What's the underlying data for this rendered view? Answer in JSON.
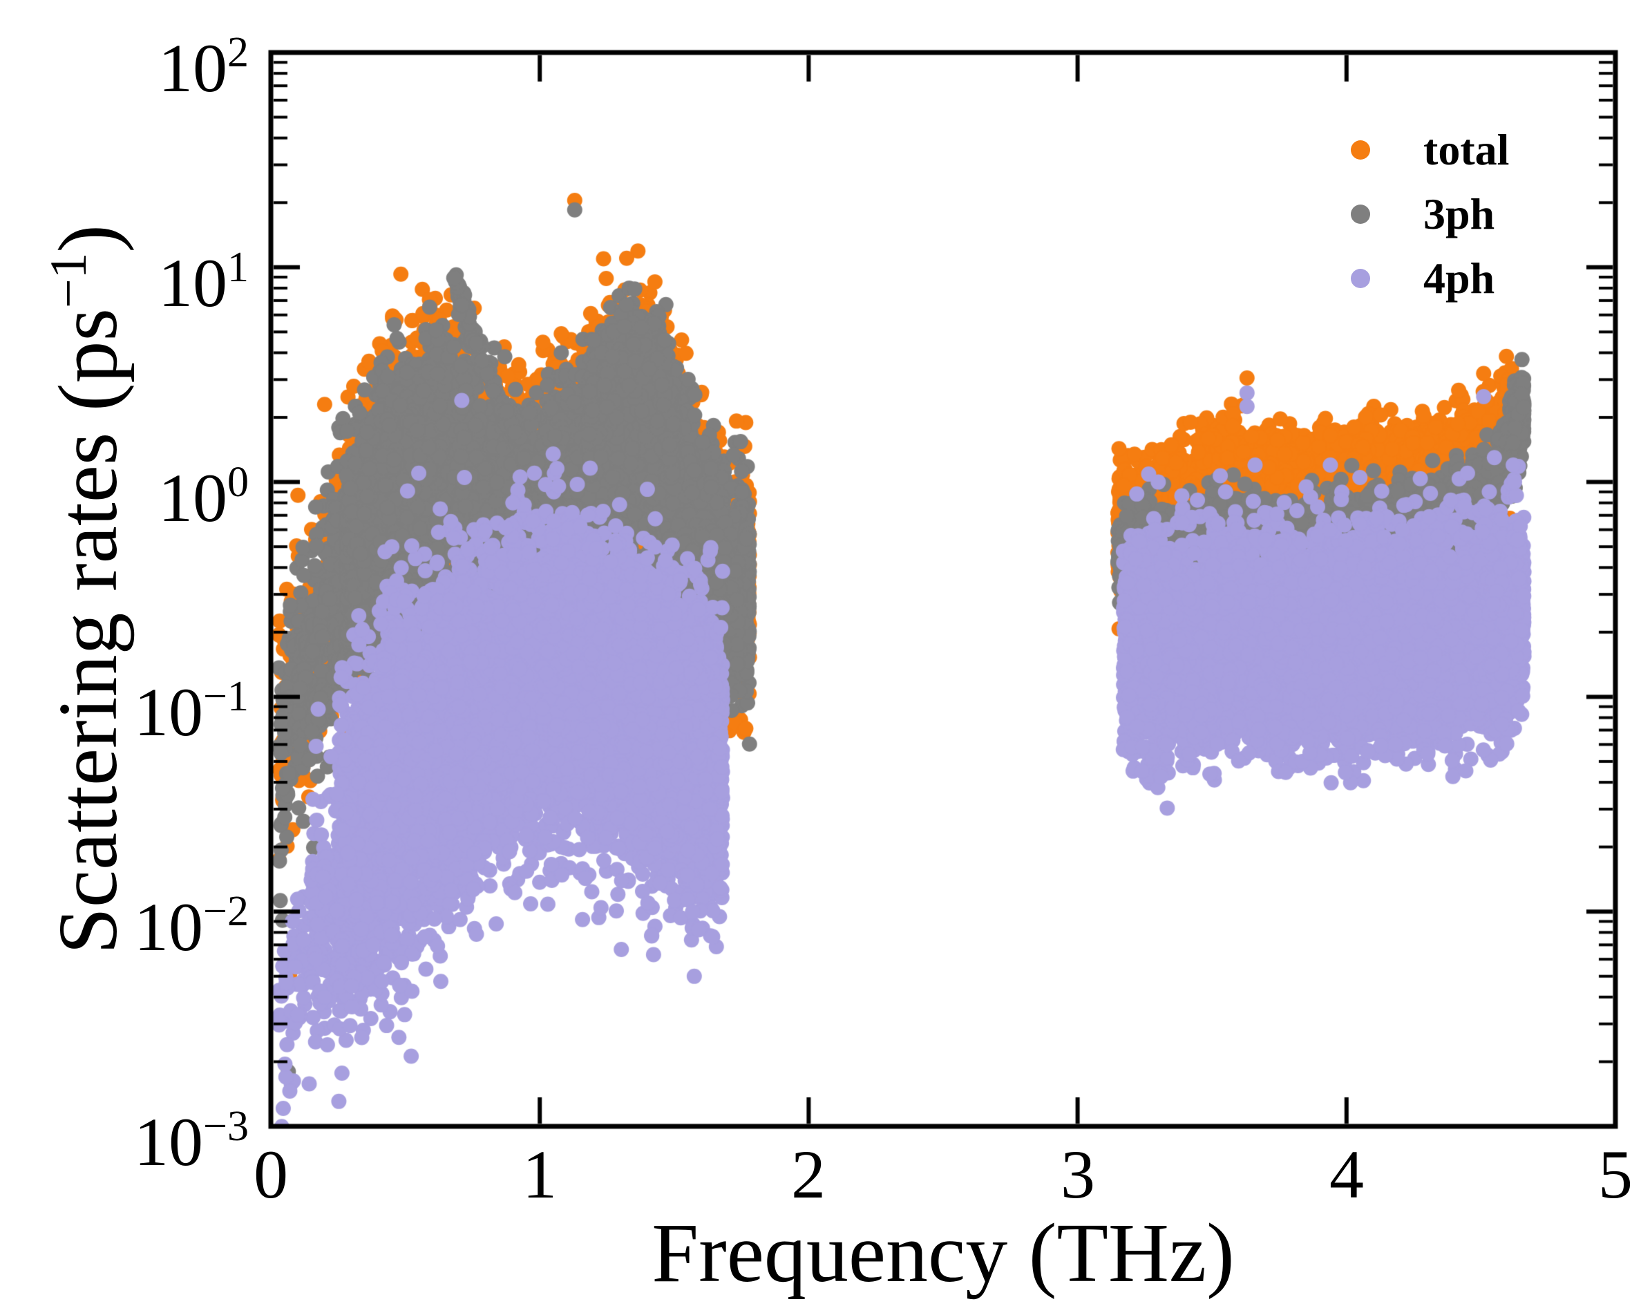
{
  "axes": {
    "xlabel": "Frequency (THz)",
    "ylabel_pre": "Scattering rates (ps",
    "ylabel_sup": "−1",
    "ylabel_post": ")",
    "xticks": [
      "0",
      "1",
      "2",
      "3",
      "4",
      "5"
    ],
    "yticks": [
      {
        "base": "10",
        "exp": "2"
      },
      {
        "base": "10",
        "exp": "1"
      },
      {
        "base": "10",
        "exp": "0"
      },
      {
        "base": "10",
        "exp": "−1"
      },
      {
        "base": "10",
        "exp": "−2"
      },
      {
        "base": "10",
        "exp": "−3"
      }
    ]
  },
  "legend": {
    "items": [
      {
        "label": "total",
        "color": "#f57d11"
      },
      {
        "label": "3ph",
        "color": "#7f7f7f"
      },
      {
        "label": "4ph",
        "color": "#a79fdf"
      }
    ]
  },
  "chart_data": {
    "type": "scatter",
    "title": "",
    "xlabel": "Frequency (THz)",
    "ylabel": "Scattering rates (ps^-1)",
    "x_range": [
      0,
      5
    ],
    "y_log_range": [
      -3,
      2
    ],
    "x_ticks": [
      0,
      1,
      2,
      3,
      4,
      5
    ],
    "y_tick_exponents": [
      2,
      1,
      0,
      -1,
      -2,
      -3
    ],
    "grid": false,
    "legend_position": "upper right inside",
    "marker_px": 11,
    "frequency_bands_thz": [
      [
        0.03,
        1.78
      ],
      [
        3.15,
        4.66
      ]
    ],
    "series": [
      {
        "name": "total",
        "color": "#f57d11",
        "clusters": [
          {
            "n": 420,
            "x": [
              0.03,
              0.48
            ],
            "logy_keys": [
              [
                0.03,
                -1.25
              ],
              [
                0.12,
                -0.85
              ],
              [
                0.22,
                -0.5
              ],
              [
                0.33,
                -0.18
              ],
              [
                0.48,
                0.18
              ]
            ],
            "spread": 0.3
          },
          {
            "n": 7000,
            "x": [
              0.28,
              1.78
            ],
            "logy_keys": [
              [
                0.28,
                -0.32
              ],
              [
                0.5,
                0.05
              ],
              [
                0.62,
                0.26
              ],
              [
                0.8,
                -0.05
              ],
              [
                0.95,
                -0.2
              ],
              [
                1.1,
                0.0
              ],
              [
                1.25,
                0.26
              ],
              [
                1.4,
                0.3
              ],
              [
                1.5,
                0.1
              ],
              [
                1.6,
                -0.25
              ],
              [
                1.7,
                -0.45
              ],
              [
                1.78,
                -0.5
              ]
            ],
            "spread": 0.24
          },
          {
            "n": 500,
            "x": [
              1.18,
              1.5
            ],
            "logy_keys": [
              [
                1.18,
                0.3
              ],
              [
                1.3,
                0.58
              ],
              [
                1.36,
                0.62
              ],
              [
                1.44,
                0.5
              ],
              [
                1.5,
                0.22
              ]
            ],
            "spread": 0.12
          },
          {
            "n": 500,
            "x": [
              0.75,
              1.1
            ],
            "logy_keys": [
              [
                0.75,
                -0.1
              ],
              [
                0.9,
                -0.28
              ],
              [
                1.1,
                -0.15
              ]
            ],
            "spread": 0.3
          },
          {
            "n": 700,
            "x": [
              0.3,
              1.72
            ],
            "logy_keys": [
              [
                0.3,
                -0.5
              ],
              [
                0.8,
                -0.5
              ],
              [
                1.2,
                -0.45
              ],
              [
                1.72,
                -0.55
              ]
            ],
            "spread": 0.15
          },
          {
            "n": 4500,
            "x": [
              3.15,
              4.62
            ],
            "logy_keys": [
              [
                3.15,
                -0.2
              ],
              [
                3.3,
                -0.24
              ],
              [
                3.45,
                -0.12
              ],
              [
                3.55,
                -0.02
              ],
              [
                3.7,
                -0.14
              ],
              [
                3.85,
                -0.12
              ],
              [
                4.0,
                -0.07
              ],
              [
                4.15,
                -0.04
              ],
              [
                4.3,
                -0.02
              ],
              [
                4.45,
                0.03
              ],
              [
                4.55,
                0.08
              ],
              [
                4.62,
                0.26
              ]
            ],
            "spread": 0.13
          },
          {
            "n": 450,
            "x": [
              3.15,
              4.62
            ],
            "logy_keys": [
              [
                3.15,
                -0.02
              ],
              [
                3.3,
                -0.06
              ],
              [
                3.45,
                0.06
              ],
              [
                3.55,
                0.16
              ],
              [
                3.7,
                0.04
              ],
              [
                3.85,
                0.06
              ],
              [
                4.0,
                0.11
              ],
              [
                4.15,
                0.14
              ],
              [
                4.3,
                0.16
              ],
              [
                4.45,
                0.21
              ],
              [
                4.55,
                0.26
              ],
              [
                4.62,
                0.44
              ]
            ],
            "spread": 0.1
          }
        ],
        "points": [
          [
            0.07,
            0.0051
          ],
          [
            1.13,
            20.5
          ],
          [
            1.08,
            4.9
          ],
          [
            0.64,
            4.9
          ],
          [
            0.52,
            3.4
          ],
          [
            0.2,
            2.3
          ],
          [
            1.45,
            2.7
          ],
          [
            0.33,
            2.25
          ],
          [
            3.63,
            3.05
          ],
          [
            3.94,
            1.65
          ],
          [
            4.51,
            3.2
          ],
          [
            4.62,
            2.62
          ],
          [
            3.42,
            1.9
          ],
          [
            4.3,
            1.52
          ],
          [
            4.17,
            1.42
          ],
          [
            3.77,
            1.35
          ]
        ]
      },
      {
        "name": "3ph",
        "color": "#7f7f7f",
        "clusters": [
          {
            "n": 550,
            "x": [
              0.03,
              0.48
            ],
            "logy_keys": [
              [
                0.03,
                -1.35
              ],
              [
                0.12,
                -0.9
              ],
              [
                0.22,
                -0.55
              ],
              [
                0.33,
                -0.22
              ],
              [
                0.48,
                0.12
              ]
            ],
            "spread": 0.28
          },
          {
            "n": 220,
            "x": [
              0.1,
              0.62
            ],
            "logy_keys": [
              [
                0.1,
                -0.95
              ],
              [
                0.25,
                -0.45
              ],
              [
                0.4,
                -0.05
              ],
              [
                0.52,
                0.2
              ],
              [
                0.62,
                0.38
              ]
            ],
            "spread": 0.05
          },
          {
            "n": 220,
            "x": [
              0.1,
              0.8
            ],
            "logy_keys": [
              [
                0.1,
                -1.3
              ],
              [
                0.3,
                -0.75
              ],
              [
                0.5,
                -0.42
              ],
              [
                0.65,
                -0.3
              ],
              [
                0.8,
                -0.33
              ]
            ],
            "spread": 0.06
          },
          {
            "n": 8500,
            "x": [
              0.28,
              1.78
            ],
            "logy_keys": [
              [
                0.28,
                -0.35
              ],
              [
                0.5,
                0.02
              ],
              [
                0.62,
                0.22
              ],
              [
                0.8,
                -0.08
              ],
              [
                0.95,
                -0.24
              ],
              [
                1.1,
                -0.03
              ],
              [
                1.25,
                0.22
              ],
              [
                1.4,
                0.26
              ],
              [
                1.5,
                0.06
              ],
              [
                1.6,
                -0.28
              ],
              [
                1.7,
                -0.48
              ],
              [
                1.78,
                -0.52
              ]
            ],
            "spread": 0.22
          },
          {
            "n": 240,
            "x": [
              0.68,
              1.06
            ],
            "logy_keys": [
              [
                0.68,
                0.95
              ],
              [
                0.75,
                0.68
              ],
              [
                0.85,
                0.38
              ],
              [
                0.95,
                0.1
              ],
              [
                1.06,
                -0.08
              ]
            ],
            "spread": 0.035
          },
          {
            "n": 650,
            "x": [
              1.18,
              1.5
            ],
            "logy_keys": [
              [
                1.18,
                0.26
              ],
              [
                1.3,
                0.54
              ],
              [
                1.36,
                0.58
              ],
              [
                1.44,
                0.46
              ],
              [
                1.5,
                0.18
              ]
            ],
            "spread": 0.12
          },
          {
            "n": 900,
            "x": [
              0.3,
              1.75
            ],
            "logy_keys": [
              [
                0.3,
                -0.52
              ],
              [
                0.8,
                -0.52
              ],
              [
                1.2,
                -0.48
              ],
              [
                1.75,
                -0.56
              ]
            ],
            "spread": 0.13
          },
          {
            "n": 3800,
            "x": [
              3.15,
              4.58
            ],
            "logy_keys": [
              [
                3.15,
                -0.32
              ],
              [
                3.4,
                -0.38
              ],
              [
                3.6,
                -0.28
              ],
              [
                3.8,
                -0.34
              ],
              [
                4.0,
                -0.32
              ],
              [
                4.2,
                -0.27
              ],
              [
                4.35,
                -0.2
              ],
              [
                4.5,
                -0.12
              ],
              [
                4.58,
                -0.02
              ]
            ],
            "spread": 0.11
          },
          {
            "n": 420,
            "x": [
              4.56,
              4.66
            ],
            "logy_keys": [
              [
                4.56,
                0.0
              ],
              [
                4.6,
                0.12
              ],
              [
                4.63,
                0.26
              ],
              [
                4.66,
                0.34
              ]
            ],
            "spread": 0.1
          }
        ],
        "points": [
          [
            1.13,
            18.5
          ],
          [
            0.065,
            0.0018
          ],
          [
            0.33,
            2.1
          ],
          [
            1.08,
            4.0
          ]
        ]
      },
      {
        "name": "4ph",
        "color": "#a79fdf",
        "clusters": [
          {
            "n": 7500,
            "x": [
              0.25,
              1.68
            ],
            "logy_keys": [
              [
                0.25,
                -1.75
              ],
              [
                0.5,
                -1.35
              ],
              [
                0.7,
                -1.12
              ],
              [
                0.9,
                -1.0
              ],
              [
                1.1,
                -0.95
              ],
              [
                1.3,
                -1.05
              ],
              [
                1.5,
                -1.2
              ],
              [
                1.68,
                -1.3
              ]
            ],
            "spread": 0.33
          },
          {
            "n": 260,
            "x": [
              0.03,
              0.5
            ],
            "logy_keys": [
              [
                0.03,
                -2.5
              ],
              [
                0.12,
                -2.25
              ],
              [
                0.25,
                -2.05
              ],
              [
                0.4,
                -1.85
              ],
              [
                0.5,
                -1.75
              ]
            ],
            "spread": 0.22
          },
          {
            "n": 500,
            "x": [
              0.15,
              0.8
            ],
            "logy_keys": [
              [
                0.15,
                -2.0
              ],
              [
                0.45,
                -1.7
              ],
              [
                0.8,
                -1.45
              ]
            ],
            "spread": 0.3
          },
          {
            "n": 350,
            "x": [
              0.4,
              1.6
            ],
            "logy_keys": [
              [
                0.4,
                -0.75
              ],
              [
                0.8,
                -0.55
              ],
              [
                1.1,
                -0.5
              ],
              [
                1.4,
                -0.6
              ],
              [
                1.6,
                -0.75
              ]
            ],
            "spread": 0.18
          },
          {
            "n": 8000,
            "x": [
              3.17,
              4.66
            ],
            "logy_keys": [
              [
                3.17,
                -0.78
              ],
              [
                3.35,
                -0.82
              ],
              [
                3.5,
                -0.77
              ],
              [
                3.7,
                -0.74
              ],
              [
                3.9,
                -0.8
              ],
              [
                4.1,
                -0.77
              ],
              [
                4.3,
                -0.74
              ],
              [
                4.5,
                -0.7
              ],
              [
                4.66,
                -0.62
              ]
            ],
            "spread": 0.2
          },
          {
            "n": 500,
            "x": [
              3.17,
              4.66
            ],
            "logy_keys": [
              [
                3.17,
                -0.42
              ],
              [
                3.6,
                -0.38
              ],
              [
                4.0,
                -0.4
              ],
              [
                4.4,
                -0.35
              ],
              [
                4.66,
                -0.3
              ]
            ],
            "spread": 0.15
          },
          {
            "n": 120,
            "x": [
              3.2,
              4.6
            ],
            "logy_keys": [
              [
                3.2,
                -1.12
              ],
              [
                3.9,
                -1.15
              ],
              [
                4.6,
                -1.1
              ]
            ],
            "spread": 0.1
          }
        ],
        "points": [
          [
            0.71,
            2.4
          ],
          [
            0.55,
            1.1
          ],
          [
            0.72,
            1.05
          ],
          [
            1.05,
            1.35
          ],
          [
            0.98,
            1.1
          ],
          [
            1.08,
            0.42
          ],
          [
            0.9,
            0.8
          ],
          [
            1.15,
            0.62
          ],
          [
            0.63,
            0.75
          ],
          [
            0.45,
            0.5
          ],
          [
            3.63,
            2.6
          ],
          [
            3.63,
            2.25
          ],
          [
            3.66,
            1.2
          ],
          [
            3.94,
            1.2
          ],
          [
            4.51,
            2.5
          ],
          [
            4.55,
            1.3
          ],
          [
            3.3,
            1.0
          ],
          [
            3.85,
            0.95
          ],
          [
            4.05,
            1.05
          ],
          [
            4.45,
            1.1
          ],
          [
            3.22,
            0.88
          ],
          [
            4.62,
            1.2
          ],
          [
            3.55,
            0.9
          ],
          [
            0.06,
            0.0024
          ],
          [
            0.1,
            0.0033
          ],
          [
            0.2,
            0.004
          ],
          [
            0.3,
            0.0045
          ]
        ]
      }
    ]
  }
}
